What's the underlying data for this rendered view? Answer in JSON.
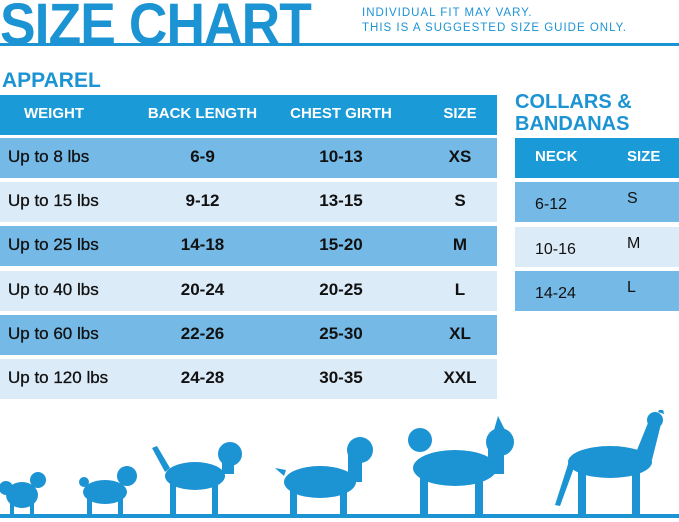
{
  "header": {
    "title": "SIZE CHART",
    "note_line1": "INDIVIDUAL FIT MAY VARY.",
    "note_line2": "THIS IS A SUGGESTED SIZE GUIDE ONLY."
  },
  "apparel": {
    "title": "APPAREL",
    "columns": [
      "WEIGHT",
      "BACK LENGTH",
      "CHEST GIRTH",
      "SIZE"
    ],
    "rows": [
      [
        "Up to 8 lbs",
        "6-9",
        "10-13",
        "XS"
      ],
      [
        "Up to 15 lbs",
        "9-12",
        "13-15",
        "S"
      ],
      [
        "Up to 25 lbs",
        "14-18",
        "15-20",
        "M"
      ],
      [
        "Up to 40 lbs",
        "20-24",
        "20-25",
        "L"
      ],
      [
        "Up to 60 lbs",
        "22-26",
        "25-30",
        "XL"
      ],
      [
        "Up to 120 lbs",
        "24-28",
        "30-35",
        "XXL"
      ]
    ]
  },
  "collars": {
    "title_line1": "COLLARS &",
    "title_line2": "BANDANAS",
    "columns": [
      "NECK",
      "SIZE"
    ],
    "rows": [
      [
        "6-12",
        "S"
      ],
      [
        "10-16",
        "M"
      ],
      [
        "14-24",
        "L"
      ]
    ]
  },
  "colors": {
    "brand": "#1c93d3",
    "header": "#1a9ad6",
    "row_dark": "#75b9e6",
    "row_light": "#dcebf8"
  },
  "decoration": {
    "icons": [
      "dog-silhouettes-icon"
    ]
  }
}
